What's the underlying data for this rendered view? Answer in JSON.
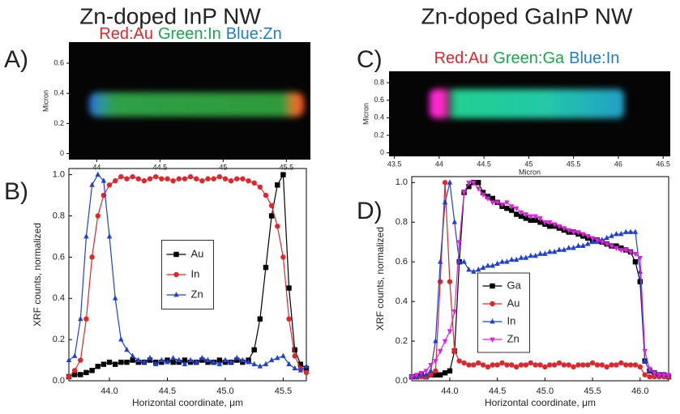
{
  "header": {
    "left": "Zn-doped InP NW",
    "right": "Zn-doped GaInP NW"
  },
  "chart_data": [
    {
      "type": "image",
      "label": "A)",
      "channels": [
        {
          "text": "Red:Au",
          "color": "#e0262b"
        },
        {
          "text": "Green:In",
          "color": "#17a84a"
        },
        {
          "text": "Blue:Zn",
          "color": "#1f7fc4"
        }
      ],
      "ylabel": "Micron",
      "xlim": [
        43.78,
        45.69
      ],
      "ylim": [
        -0.04,
        0.74
      ],
      "xticks": [
        44,
        44.5,
        45,
        45.5
      ],
      "yticks": [
        0,
        0.2,
        0.4,
        0.6
      ]
    },
    {
      "type": "line",
      "label": "B)",
      "xlabel": "Horizontal coordinate, μm",
      "ylabel": "XRF counts, normalized",
      "xlim": [
        43.65,
        45.7
      ],
      "ylim": [
        0,
        1.03
      ],
      "xticks": [
        {
          "value": 44,
          "label": "44.0"
        },
        44.5,
        {
          "value": 45,
          "label": "45.0"
        },
        45.5
      ],
      "yticks": [
        {
          "value": 0,
          "label": "0.0"
        },
        0.2,
        0.4,
        0.6,
        0.8,
        {
          "value": 1,
          "label": "1.0"
        }
      ],
      "legend": "center",
      "x": [
        43.65,
        43.7,
        43.75,
        43.8,
        43.85,
        43.9,
        43.95,
        44.0,
        44.05,
        44.1,
        44.15,
        44.2,
        44.25,
        44.3,
        44.35,
        44.4,
        44.45,
        44.5,
        44.55,
        44.6,
        44.65,
        44.7,
        44.75,
        44.8,
        44.85,
        44.9,
        44.95,
        45.0,
        45.05,
        45.1,
        45.15,
        45.2,
        45.25,
        45.3,
        45.35,
        45.4,
        45.45,
        45.5,
        45.55,
        45.6,
        45.65,
        45.7
      ],
      "series": [
        {
          "name": "Au",
          "color": "#000000",
          "marker": "square",
          "values": [
            0.02,
            0.03,
            0.03,
            0.04,
            0.05,
            0.07,
            0.08,
            0.09,
            0.08,
            0.09,
            0.09,
            0.1,
            0.09,
            0.09,
            0.1,
            0.09,
            0.09,
            0.1,
            0.09,
            0.09,
            0.1,
            0.09,
            0.09,
            0.1,
            0.09,
            0.09,
            0.1,
            0.09,
            0.09,
            0.1,
            0.09,
            0.1,
            0.15,
            0.3,
            0.55,
            0.8,
            0.95,
            1.0,
            0.45,
            0.15,
            0.08,
            0.06
          ]
        },
        {
          "name": "In",
          "color": "#e0262b",
          "marker": "circle",
          "values": [
            0.02,
            0.05,
            0.1,
            0.3,
            0.6,
            0.8,
            0.9,
            0.95,
            0.97,
            0.99,
            0.98,
            0.99,
            0.98,
            0.97,
            0.98,
            0.99,
            0.98,
            0.98,
            0.97,
            0.98,
            0.98,
            0.99,
            0.98,
            0.97,
            0.98,
            0.98,
            0.99,
            0.98,
            0.97,
            0.98,
            0.98,
            0.97,
            0.96,
            0.94,
            0.9,
            0.85,
            0.75,
            0.6,
            0.3,
            0.12,
            0.06,
            0.04
          ]
        },
        {
          "name": "Zn",
          "color": "#1f3fd6",
          "marker": "triangle-up",
          "values": [
            0.1,
            0.12,
            0.3,
            0.7,
            0.95,
            1.0,
            0.97,
            0.7,
            0.4,
            0.2,
            0.15,
            0.12,
            0.1,
            0.09,
            0.11,
            0.08,
            0.1,
            0.09,
            0.11,
            0.1,
            0.08,
            0.1,
            0.09,
            0.11,
            0.1,
            0.09,
            0.08,
            0.1,
            0.09,
            0.11,
            0.1,
            0.09,
            0.08,
            0.07,
            0.08,
            0.1,
            0.11,
            0.12,
            0.08,
            0.06,
            0.05,
            0.07
          ]
        }
      ]
    },
    {
      "type": "image",
      "label": "C)",
      "channels": [
        {
          "text": "Red:Au",
          "color": "#e0262b"
        },
        {
          "text": "Green:Ga",
          "color": "#17a84a"
        },
        {
          "text": "Blue:In",
          "color": "#1f7fc4"
        }
      ],
      "xlabel": "Micron",
      "ylabel": "Micron",
      "xlim": [
        43.44,
        46.58
      ],
      "ylim": [
        -0.04,
        0.93
      ],
      "xticks": [
        43.5,
        44,
        44.5,
        45,
        45.5,
        46,
        46.5
      ],
      "yticks": [
        0,
        0.2,
        0.4,
        0.6,
        0.8
      ]
    },
    {
      "type": "line",
      "label": "D)",
      "xlabel": "Horizontal coordinate, μm",
      "ylabel": "XRF counts, normalized",
      "xlim": [
        43.6,
        46.3
      ],
      "ylim": [
        0,
        1.03
      ],
      "xticks": [
        {
          "value": 44,
          "label": "44.0"
        },
        44.5,
        {
          "value": 45,
          "label": "45.0"
        },
        45.5,
        {
          "value": 46,
          "label": "46.0"
        }
      ],
      "yticks": [
        {
          "value": 0,
          "label": "0.0"
        },
        0.2,
        0.4,
        0.6,
        0.8,
        {
          "value": 1,
          "label": "1.0"
        }
      ],
      "legend": "lower center",
      "x": [
        43.6,
        43.65,
        43.7,
        43.75,
        43.8,
        43.85,
        43.9,
        43.95,
        44.0,
        44.05,
        44.1,
        44.15,
        44.2,
        44.25,
        44.3,
        44.35,
        44.4,
        44.45,
        44.5,
        44.55,
        44.6,
        44.65,
        44.7,
        44.75,
        44.8,
        44.85,
        44.9,
        44.95,
        45.0,
        45.05,
        45.1,
        45.15,
        45.2,
        45.25,
        45.3,
        45.35,
        45.4,
        45.45,
        45.5,
        45.55,
        45.6,
        45.65,
        45.7,
        45.75,
        45.8,
        45.85,
        45.9,
        45.95,
        46.0,
        46.05,
        46.1,
        46.15,
        46.2,
        46.25,
        46.3
      ],
      "series": [
        {
          "name": "Ga",
          "color": "#000000",
          "marker": "square",
          "values": [
            0.02,
            0.02,
            0.03,
            0.02,
            0.03,
            0.03,
            0.03,
            0.04,
            0.05,
            0.15,
            0.6,
            0.95,
            0.98,
            1.0,
            1.0,
            0.95,
            0.93,
            0.92,
            0.9,
            0.88,
            0.87,
            0.86,
            0.84,
            0.83,
            0.82,
            0.81,
            0.81,
            0.8,
            0.79,
            0.78,
            0.78,
            0.77,
            0.76,
            0.75,
            0.75,
            0.74,
            0.73,
            0.72,
            0.71,
            0.71,
            0.7,
            0.69,
            0.68,
            0.68,
            0.67,
            0.66,
            0.65,
            0.6,
            0.5,
            0.1,
            0.05,
            0.04,
            0.03,
            0.03,
            0.02
          ]
        },
        {
          "name": "Au",
          "color": "#e0262b",
          "marker": "circle",
          "values": [
            0.02,
            0.02,
            0.02,
            0.02,
            0.03,
            0.05,
            0.5,
            1.0,
            0.5,
            0.15,
            0.1,
            0.09,
            0.08,
            0.08,
            0.09,
            0.08,
            0.07,
            0.08,
            0.08,
            0.09,
            0.08,
            0.08,
            0.07,
            0.08,
            0.08,
            0.09,
            0.08,
            0.08,
            0.07,
            0.08,
            0.08,
            0.09,
            0.08,
            0.08,
            0.07,
            0.08,
            0.08,
            0.08,
            0.09,
            0.08,
            0.08,
            0.07,
            0.08,
            0.08,
            0.09,
            0.08,
            0.08,
            0.08,
            0.07,
            0.03,
            0.02,
            0.02,
            0.02,
            0.02,
            0.02
          ]
        },
        {
          "name": "In",
          "color": "#1f3fd6",
          "marker": "triangle-up",
          "values": [
            0.02,
            0.02,
            0.03,
            0.03,
            0.05,
            0.2,
            0.6,
            0.9,
            1.0,
            0.8,
            0.6,
            0.6,
            0.56,
            0.55,
            0.56,
            0.57,
            0.58,
            0.58,
            0.59,
            0.6,
            0.6,
            0.61,
            0.61,
            0.62,
            0.62,
            0.63,
            0.63,
            0.64,
            0.64,
            0.65,
            0.65,
            0.66,
            0.66,
            0.67,
            0.67,
            0.68,
            0.68,
            0.69,
            0.7,
            0.7,
            0.71,
            0.72,
            0.73,
            0.74,
            0.74,
            0.75,
            0.75,
            0.75,
            0.55,
            0.1,
            0.05,
            0.04,
            0.03,
            0.03,
            0.03
          ]
        },
        {
          "name": "Zn",
          "color": "#e020e0",
          "marker": "triangle-down",
          "values": [
            0.02,
            0.03,
            0.04,
            0.05,
            0.08,
            0.1,
            0.15,
            0.2,
            0.25,
            0.35,
            0.7,
            0.95,
            1.0,
            1.0,
            0.97,
            0.94,
            0.92,
            0.9,
            0.9,
            0.89,
            0.9,
            0.88,
            0.87,
            0.85,
            0.84,
            0.83,
            0.83,
            0.82,
            0.8,
            0.8,
            0.79,
            0.78,
            0.77,
            0.76,
            0.75,
            0.75,
            0.74,
            0.73,
            0.72,
            0.71,
            0.7,
            0.69,
            0.68,
            0.67,
            0.66,
            0.66,
            0.65,
            0.64,
            0.62,
            0.15,
            0.06,
            0.04,
            0.03,
            0.03,
            0.03
          ]
        }
      ]
    }
  ]
}
